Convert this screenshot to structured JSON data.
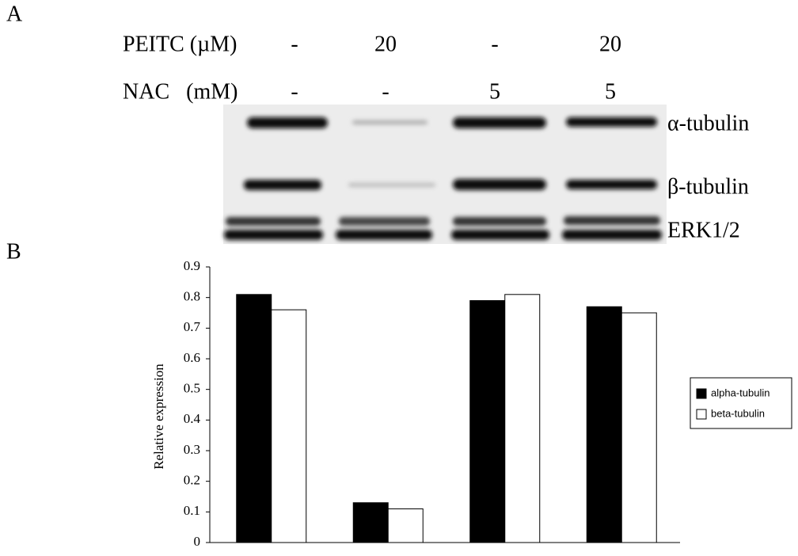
{
  "panel_a": {
    "label": "A",
    "treatments": [
      {
        "name": "PEITC (µM)",
        "levels": [
          "-",
          "20",
          "-",
          "20"
        ]
      },
      {
        "name": "NAC   (mM)",
        "levels": [
          "-",
          "-",
          "5",
          "5"
        ]
      }
    ],
    "bands": [
      "α-tubulin",
      "β-tubulin",
      "ERK1/2"
    ]
  },
  "chart_data": {
    "type": "bar",
    "panel_label": "B",
    "y_label": "Relative expression",
    "categories": [
      null,
      null,
      null,
      null
    ],
    "series": [
      {
        "name": "alpha-tubulin",
        "color": "#000000",
        "values": [
          0.81,
          0.13,
          0.79,
          0.77
        ]
      },
      {
        "name": "beta-tubulin",
        "color": "#ffffff",
        "values": [
          0.76,
          0.11,
          0.81,
          0.75
        ]
      }
    ],
    "ylim": [
      0,
      0.9
    ],
    "yticks": [
      0,
      0.1,
      0.2,
      0.3,
      0.4,
      0.5,
      0.6,
      0.7,
      0.8,
      0.9
    ],
    "grid": false,
    "legend": "right"
  }
}
